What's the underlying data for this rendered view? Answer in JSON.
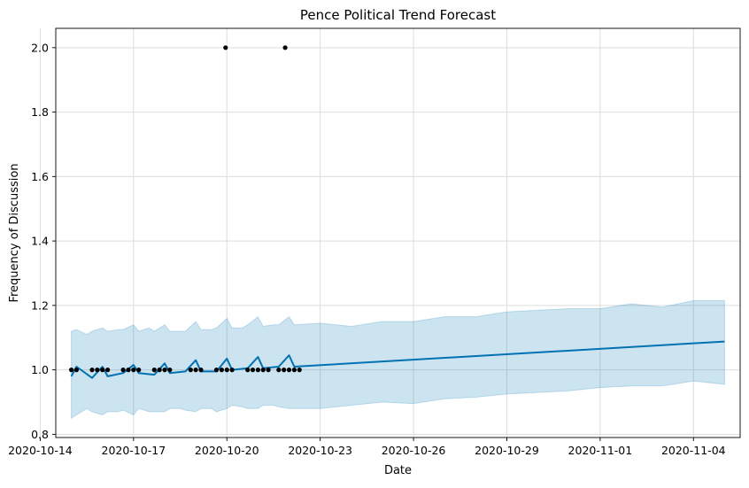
{
  "chart_data": {
    "type": "line",
    "title": "Pence Political Trend Forecast",
    "xlabel": "Date",
    "ylabel": "Frequency of Discussion",
    "x_axis": {
      "type": "date",
      "range": [
        "2020-10-14T12:00",
        "2020-11-05T12:00"
      ],
      "ticks": [
        "2020-10-14",
        "2020-10-17",
        "2020-10-20",
        "2020-10-23",
        "2020-10-26",
        "2020-10-29",
        "2020-11-01",
        "2020-11-04"
      ]
    },
    "y_axis": {
      "range": [
        0.79,
        2.06
      ],
      "ticks": [
        "0.8",
        "1.0",
        "1.2",
        "1.4",
        "1.6",
        "1.8",
        "2.0"
      ]
    },
    "grid": true,
    "colors": {
      "forecast_line": "#0072B2",
      "uncertainty_band": "#0072B2",
      "observations": "#000000",
      "grid": "#dddddd"
    },
    "series": [
      {
        "role": "observations",
        "kind": "scatter",
        "points": [
          [
            "2020-10-15T00:00",
            1.0
          ],
          [
            "2020-10-15T04:00",
            1.0
          ],
          [
            "2020-10-15T16:00",
            1.0
          ],
          [
            "2020-10-15T20:00",
            1.0
          ],
          [
            "2020-10-16T00:00",
            1.0
          ],
          [
            "2020-10-16T04:00",
            1.0
          ],
          [
            "2020-10-16T16:00",
            1.0
          ],
          [
            "2020-10-16T20:00",
            1.0
          ],
          [
            "2020-10-17T00:00",
            1.0
          ],
          [
            "2020-10-17T04:00",
            1.0
          ],
          [
            "2020-10-17T16:00",
            1.0
          ],
          [
            "2020-10-17T20:00",
            1.0
          ],
          [
            "2020-10-18T00:00",
            1.0
          ],
          [
            "2020-10-18T04:00",
            1.0
          ],
          [
            "2020-10-18T20:00",
            1.0
          ],
          [
            "2020-10-19T00:00",
            1.0
          ],
          [
            "2020-10-19T04:00",
            1.0
          ],
          [
            "2020-10-19T16:00",
            1.0
          ],
          [
            "2020-10-19T20:00",
            1.0
          ],
          [
            "2020-10-20T00:00",
            1.0
          ],
          [
            "2020-10-20T04:00",
            1.0
          ],
          [
            "2020-10-19T23:00",
            2.0
          ],
          [
            "2020-10-20T16:00",
            1.0
          ],
          [
            "2020-10-20T20:00",
            1.0
          ],
          [
            "2020-10-21T00:00",
            1.0
          ],
          [
            "2020-10-21T04:00",
            1.0
          ],
          [
            "2020-10-21T08:00",
            1.0
          ],
          [
            "2020-10-21T16:00",
            1.0
          ],
          [
            "2020-10-21T20:00",
            1.0
          ],
          [
            "2020-10-21T21:00",
            2.0
          ],
          [
            "2020-10-22T00:00",
            1.0
          ],
          [
            "2020-10-22T04:00",
            1.0
          ],
          [
            "2020-10-22T08:00",
            1.0
          ]
        ]
      },
      {
        "role": "forecast",
        "kind": "line",
        "points": [
          [
            "2020-10-15T00:00",
            0.98
          ],
          [
            "2020-10-15T04:00",
            1.01
          ],
          [
            "2020-10-15T16:00",
            0.975
          ],
          [
            "2020-10-16T00:00",
            1.01
          ],
          [
            "2020-10-16T04:00",
            0.98
          ],
          [
            "2020-10-16T16:00",
            0.99
          ],
          [
            "2020-10-17T00:00",
            1.015
          ],
          [
            "2020-10-17T04:00",
            0.99
          ],
          [
            "2020-10-17T16:00",
            0.985
          ],
          [
            "2020-10-18T00:00",
            1.02
          ],
          [
            "2020-10-18T04:00",
            0.99
          ],
          [
            "2020-10-18T16:00",
            0.995
          ],
          [
            "2020-10-19T00:00",
            1.03
          ],
          [
            "2020-10-19T04:00",
            0.995
          ],
          [
            "2020-10-19T16:00",
            0.995
          ],
          [
            "2020-10-20T00:00",
            1.035
          ],
          [
            "2020-10-20T04:00",
            1.0
          ],
          [
            "2020-10-20T16:00",
            1.005
          ],
          [
            "2020-10-21T00:00",
            1.04
          ],
          [
            "2020-10-21T04:00",
            1.005
          ],
          [
            "2020-10-21T16:00",
            1.01
          ],
          [
            "2020-10-22T00:00",
            1.045
          ],
          [
            "2020-10-22T04:00",
            1.01
          ],
          [
            "2020-11-05T00:00",
            1.088
          ]
        ]
      },
      {
        "role": "uncertainty_interval",
        "kind": "band",
        "points": [
          [
            "2020-10-15T00:00",
            0.85,
            1.12
          ],
          [
            "2020-10-15T04:00",
            0.86,
            1.125
          ],
          [
            "2020-10-15T12:00",
            0.88,
            1.11
          ],
          [
            "2020-10-15T16:00",
            0.87,
            1.12
          ],
          [
            "2020-10-16T00:00",
            0.86,
            1.13
          ],
          [
            "2020-10-16T04:00",
            0.87,
            1.12
          ],
          [
            "2020-10-16T12:00",
            0.87,
            1.125
          ],
          [
            "2020-10-16T16:00",
            0.875,
            1.125
          ],
          [
            "2020-10-17T00:00",
            0.86,
            1.14
          ],
          [
            "2020-10-17T04:00",
            0.88,
            1.12
          ],
          [
            "2020-10-17T12:00",
            0.87,
            1.13
          ],
          [
            "2020-10-17T16:00",
            0.87,
            1.12
          ],
          [
            "2020-10-18T00:00",
            0.87,
            1.14
          ],
          [
            "2020-10-18T04:00",
            0.88,
            1.12
          ],
          [
            "2020-10-18T12:00",
            0.88,
            1.12
          ],
          [
            "2020-10-18T16:00",
            0.875,
            1.12
          ],
          [
            "2020-10-19T00:00",
            0.87,
            1.15
          ],
          [
            "2020-10-19T04:00",
            0.88,
            1.125
          ],
          [
            "2020-10-19T12:00",
            0.88,
            1.125
          ],
          [
            "2020-10-19T16:00",
            0.87,
            1.13
          ],
          [
            "2020-10-20T00:00",
            0.88,
            1.16
          ],
          [
            "2020-10-20T04:00",
            0.89,
            1.13
          ],
          [
            "2020-10-20T12:00",
            0.885,
            1.13
          ],
          [
            "2020-10-20T16:00",
            0.88,
            1.14
          ],
          [
            "2020-10-21T00:00",
            0.88,
            1.165
          ],
          [
            "2020-10-21T04:00",
            0.89,
            1.135
          ],
          [
            "2020-10-21T12:00",
            0.89,
            1.14
          ],
          [
            "2020-10-21T16:00",
            0.885,
            1.14
          ],
          [
            "2020-10-22T00:00",
            0.88,
            1.165
          ],
          [
            "2020-10-22T04:00",
            0.88,
            1.14
          ],
          [
            "2020-10-23T00:00",
            0.88,
            1.145
          ],
          [
            "2020-10-24T00:00",
            0.89,
            1.135
          ],
          [
            "2020-10-25T00:00",
            0.9,
            1.15
          ],
          [
            "2020-10-26T00:00",
            0.895,
            1.15
          ],
          [
            "2020-10-27T00:00",
            0.91,
            1.165
          ],
          [
            "2020-10-28T00:00",
            0.915,
            1.165
          ],
          [
            "2020-10-29T00:00",
            0.925,
            1.18
          ],
          [
            "2020-10-30T00:00",
            0.93,
            1.185
          ],
          [
            "2020-10-31T00:00",
            0.935,
            1.19
          ],
          [
            "2020-11-01T00:00",
            0.945,
            1.19
          ],
          [
            "2020-11-02T00:00",
            0.95,
            1.205
          ],
          [
            "2020-11-03T00:00",
            0.95,
            1.195
          ],
          [
            "2020-11-04T00:00",
            0.965,
            1.215
          ],
          [
            "2020-11-05T00:00",
            0.955,
            1.215
          ]
        ]
      }
    ]
  }
}
